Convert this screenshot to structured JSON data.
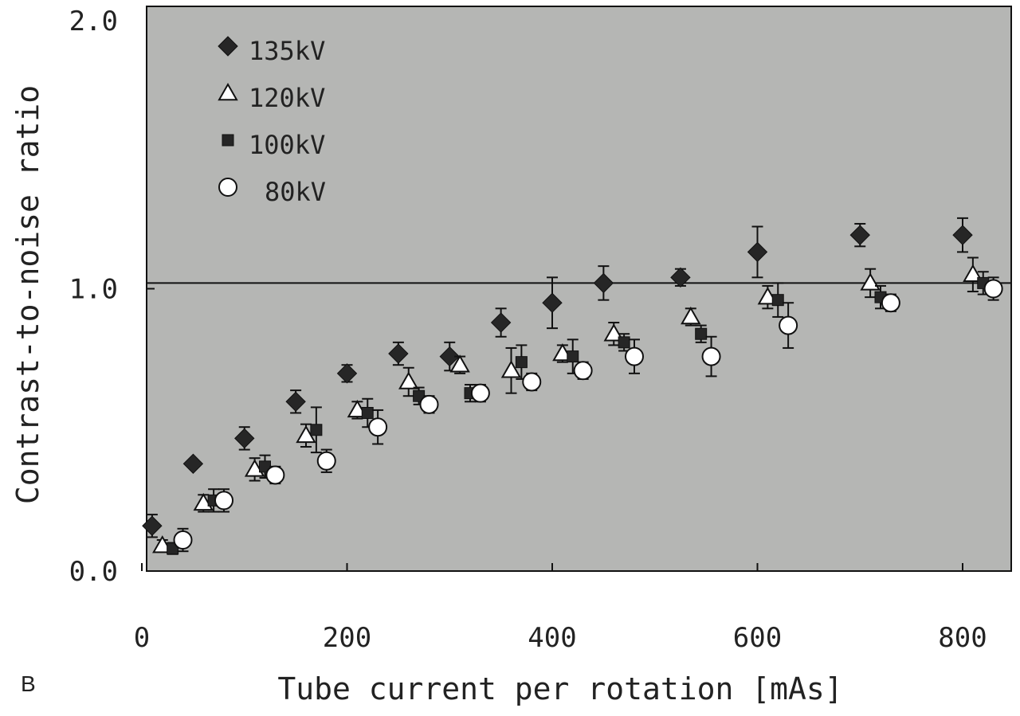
{
  "panel_label": "B",
  "colors": {
    "plot_background": "#b5b6b4",
    "frame": "#111111",
    "filled_marker": "#262626",
    "open_marker": "#ffffff"
  },
  "chart_data": {
    "type": "scatter",
    "title": "",
    "xlabel": "Tube current per rotation [mAs]",
    "ylabel": "Contrast-to-noise ratio",
    "xlim": [
      0,
      850
    ],
    "ylim": [
      0.0,
      2.0
    ],
    "x_ticks": [
      0,
      200,
      400,
      600,
      800
    ],
    "x_tick_labels": [
      "0",
      "200",
      "400",
      "600",
      "800"
    ],
    "y_ticks": [
      0.0,
      1.0,
      2.0
    ],
    "y_tick_labels": [
      "0.0",
      "1.0",
      "2.0"
    ],
    "reference_line_y": 1.02,
    "grid": false,
    "legend_position": "top-left",
    "series": [
      {
        "name": "135kV",
        "marker": "diamond-filled",
        "points": [
          {
            "x": 10,
            "y": 0.16,
            "err": 0.04
          },
          {
            "x": 50,
            "y": 0.38,
            "err": null
          },
          {
            "x": 100,
            "y": 0.47,
            "err": 0.04
          },
          {
            "x": 150,
            "y": 0.6,
            "err": 0.04
          },
          {
            "x": 200,
            "y": 0.7,
            "err": 0.03
          },
          {
            "x": 250,
            "y": 0.77,
            "err": 0.04
          },
          {
            "x": 300,
            "y": 0.76,
            "err": 0.05
          },
          {
            "x": 350,
            "y": 0.88,
            "err": 0.05
          },
          {
            "x": 400,
            "y": 0.95,
            "err": 0.09
          },
          {
            "x": 450,
            "y": 1.02,
            "err": 0.06
          },
          {
            "x": 525,
            "y": 1.04,
            "err": 0.03
          },
          {
            "x": 600,
            "y": 1.13,
            "err": 0.09
          },
          {
            "x": 700,
            "y": 1.19,
            "err": 0.04
          },
          {
            "x": 800,
            "y": 1.19,
            "err": 0.06
          }
        ]
      },
      {
        "name": "120kV",
        "marker": "triangle-open",
        "points": [
          {
            "x": 20,
            "y": 0.09,
            "err": 0.02
          },
          {
            "x": 60,
            "y": 0.24,
            "err": 0.03
          },
          {
            "x": 110,
            "y": 0.36,
            "err": 0.04
          },
          {
            "x": 160,
            "y": 0.48,
            "err": 0.04
          },
          {
            "x": 210,
            "y": 0.57,
            "err": 0.03
          },
          {
            "x": 260,
            "y": 0.67,
            "err": 0.05
          },
          {
            "x": 310,
            "y": 0.73,
            "err": 0.03
          },
          {
            "x": 360,
            "y": 0.71,
            "err": 0.08
          },
          {
            "x": 410,
            "y": 0.77,
            "err": 0.03
          },
          {
            "x": 460,
            "y": 0.84,
            "err": 0.04
          },
          {
            "x": 535,
            "y": 0.9,
            "err": 0.03
          },
          {
            "x": 610,
            "y": 0.97,
            "err": 0.04
          },
          {
            "x": 710,
            "y": 1.02,
            "err": 0.05
          },
          {
            "x": 810,
            "y": 1.05,
            "err": 0.06
          }
        ]
      },
      {
        "name": "100kV",
        "marker": "square-filled",
        "points": [
          {
            "x": 30,
            "y": 0.08,
            "err": 0.02
          },
          {
            "x": 70,
            "y": 0.25,
            "err": 0.04
          },
          {
            "x": 120,
            "y": 0.37,
            "err": 0.04
          },
          {
            "x": 170,
            "y": 0.5,
            "err": 0.08
          },
          {
            "x": 220,
            "y": 0.56,
            "err": 0.05
          },
          {
            "x": 270,
            "y": 0.62,
            "err": 0.03
          },
          {
            "x": 320,
            "y": 0.63,
            "err": 0.03
          },
          {
            "x": 370,
            "y": 0.74,
            "err": 0.06
          },
          {
            "x": 420,
            "y": 0.76,
            "err": 0.06
          },
          {
            "x": 470,
            "y": 0.81,
            "err": 0.03
          },
          {
            "x": 545,
            "y": 0.84,
            "err": 0.03
          },
          {
            "x": 620,
            "y": 0.96,
            "err": 0.06
          },
          {
            "x": 720,
            "y": 0.97,
            "err": 0.04
          },
          {
            "x": 820,
            "y": 1.02,
            "err": 0.04
          }
        ]
      },
      {
        "name": "80kV",
        "marker": "circle-open",
        "points": [
          {
            "x": 40,
            "y": 0.11,
            "err": 0.04
          },
          {
            "x": 80,
            "y": 0.25,
            "err": 0.04
          },
          {
            "x": 130,
            "y": 0.34,
            "err": 0.03
          },
          {
            "x": 180,
            "y": 0.39,
            "err": 0.04
          },
          {
            "x": 230,
            "y": 0.51,
            "err": 0.06
          },
          {
            "x": 280,
            "y": 0.59,
            "err": 0.03
          },
          {
            "x": 330,
            "y": 0.63,
            "err": 0.03
          },
          {
            "x": 380,
            "y": 0.67,
            "err": 0.03
          },
          {
            "x": 430,
            "y": 0.71,
            "err": 0.03
          },
          {
            "x": 480,
            "y": 0.76,
            "err": 0.06
          },
          {
            "x": 555,
            "y": 0.76,
            "err": 0.07
          },
          {
            "x": 630,
            "y": 0.87,
            "err": 0.08
          },
          {
            "x": 730,
            "y": 0.95,
            "err": 0.03
          },
          {
            "x": 830,
            "y": 1.0,
            "err": 0.04
          }
        ]
      }
    ]
  }
}
